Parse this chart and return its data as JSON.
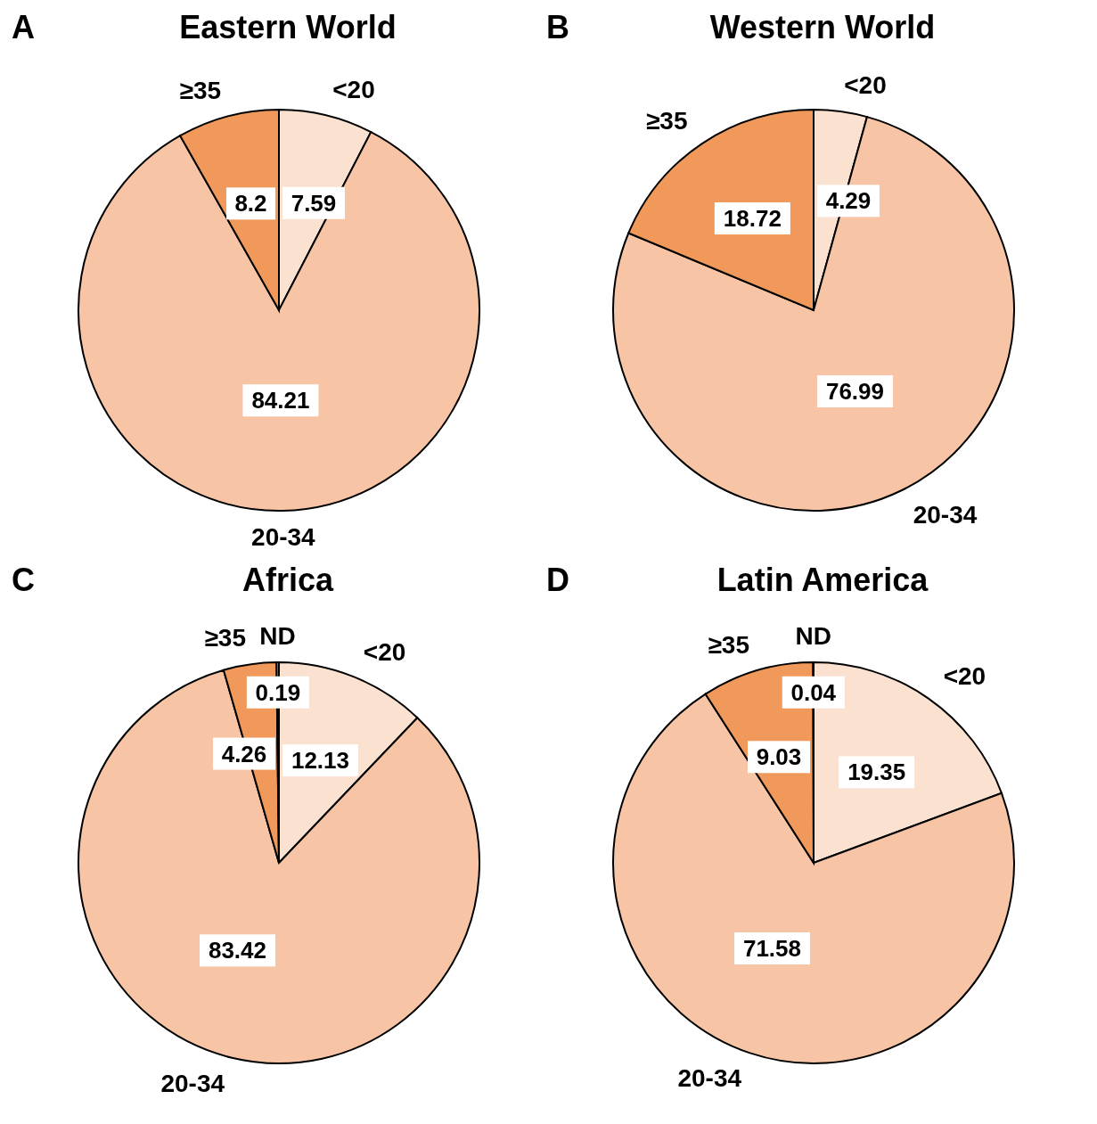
{
  "chart_data": [
    {
      "type": "pie",
      "title": "Eastern World",
      "annotations": [
        "A"
      ],
      "categories": [
        "<20",
        "20-34",
        "≥35"
      ],
      "values": [
        7.59,
        84.21,
        8.2
      ],
      "colors": [
        "#fbe1d0",
        "#f7c5a6",
        "#f0995a"
      ],
      "data_labels": true
    },
    {
      "type": "pie",
      "title": "Western World",
      "annotations": [
        "B"
      ],
      "categories": [
        "<20",
        "20-34",
        "≥35"
      ],
      "values": [
        4.29,
        76.99,
        18.72
      ],
      "colors": [
        "#fbe1d0",
        "#f7c5a6",
        "#f0995a"
      ],
      "data_labels": true
    },
    {
      "type": "pie",
      "title": "Africa",
      "annotations": [
        "C"
      ],
      "categories": [
        "<20",
        "20-34",
        "≥35",
        "ND"
      ],
      "values": [
        12.13,
        83.42,
        4.26,
        0.19
      ],
      "colors": [
        "#fbe1d0",
        "#f7c5a6",
        "#f0995a",
        "#f0995a"
      ],
      "data_labels": true
    },
    {
      "type": "pie",
      "title": "Latin America",
      "annotations": [
        "D"
      ],
      "categories": [
        "<20",
        "20-34",
        "≥35",
        "ND"
      ],
      "values": [
        19.35,
        71.58,
        9.03,
        0.04
      ],
      "colors": [
        "#fbe1d0",
        "#f7c5a6",
        "#f0995a",
        "#f0995a"
      ],
      "data_labels": true
    }
  ]
}
